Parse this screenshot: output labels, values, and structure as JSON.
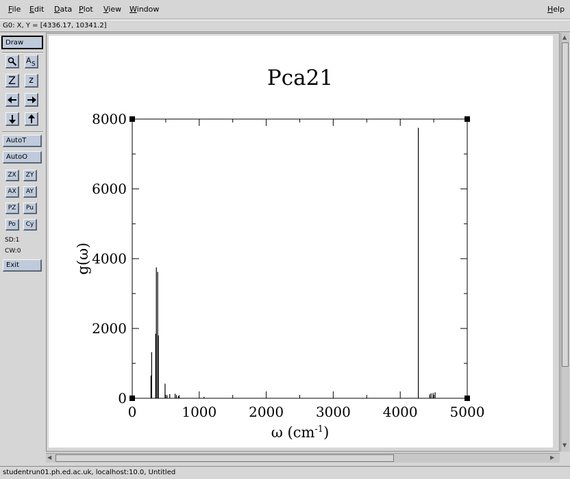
{
  "menu": {
    "file": {
      "ul": "F",
      "rest": "ile"
    },
    "edit": {
      "ul": "E",
      "rest": "dit"
    },
    "data": {
      "ul": "D",
      "rest": "ata"
    },
    "plot": {
      "ul": "P",
      "rest": "lot"
    },
    "view": {
      "ul": "V",
      "rest": "iew"
    },
    "window": {
      "ul": "W",
      "rest": "indow"
    },
    "help": {
      "ul": "H",
      "rest": "elp"
    }
  },
  "coord_readout": "G0: X, Y = [4336.17, 10341.2]",
  "toolbar": {
    "draw": "Draw",
    "zoom_icon": "magnifier-icon",
    "autoscale_icon": "autoscale-letters-icon",
    "zoom_in": "Z",
    "zoom_out": "z",
    "left_icon": "arrow-left-icon",
    "right_icon": "arrow-right-icon",
    "down_icon": "arrow-down-icon",
    "up_icon": "arrow-up-icon",
    "autot": "AutoT",
    "autoo": "AutoO",
    "zx": "ZX",
    "zy": "ZY",
    "ax": "AX",
    "ay": "AY",
    "pz": "PZ",
    "pu": "Pu",
    "po": "Po",
    "cy": "Cy",
    "sd": "SD:1",
    "cw": "CW:0",
    "exit": "Exit"
  },
  "status": "studentrun01.ph.ed.ac.uk, localhost:10.0, Untitled",
  "chart_data": {
    "type": "bar",
    "title": "Pca21",
    "xlabel_main": "ω (cm",
    "xlabel_sup": "-1",
    "xlabel_close": ")",
    "ylabel": "g(ω)",
    "xlim": [
      0,
      5000
    ],
    "ylim": [
      0,
      8000
    ],
    "x_ticks": [
      "0",
      "1000",
      "2000",
      "3000",
      "4000",
      "5000"
    ],
    "y_ticks": [
      "0",
      "2000",
      "4000",
      "6000",
      "8000"
    ],
    "series": [
      {
        "x": [
          280,
          290,
          350,
          360,
          380,
          390,
          490,
          520,
          560,
          640,
          660,
          690,
          700,
          1070,
          4270,
          4440,
          4460,
          4490,
          4520
        ],
        "values": [
          650,
          1320,
          1850,
          3750,
          3620,
          1800,
          420,
          90,
          120,
          130,
          90,
          60,
          90,
          40,
          7750,
          110,
          140,
          150,
          170
        ]
      }
    ]
  }
}
